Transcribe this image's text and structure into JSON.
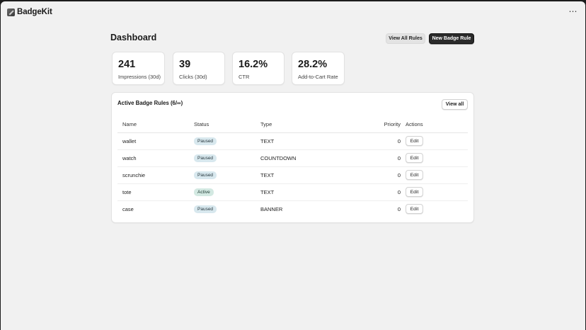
{
  "app": {
    "name": "BadgeKit",
    "more_label": "⋯"
  },
  "header": {
    "title": "Dashboard",
    "view_all_rules_label": "View All Rules",
    "new_badge_rule_label": "New Badge Rule"
  },
  "stats": [
    {
      "value": "241",
      "label": "Impressions (30d)"
    },
    {
      "value": "39",
      "label": "Clicks (30d)"
    },
    {
      "value": "16.2%",
      "label": "CTR"
    },
    {
      "value": "28.2%",
      "label": "Add-to-Cart Rate"
    }
  ],
  "rules": {
    "title": "Active Badge Rules (6/∞)",
    "view_all_label": "View all",
    "columns": {
      "name": "Name",
      "status": "Status",
      "type": "Type",
      "priority": "Priority",
      "actions": "Actions"
    },
    "rows": [
      {
        "name": "wallet",
        "status": "Paused",
        "type": "TEXT",
        "priority": "0",
        "action": "Edit"
      },
      {
        "name": "watch",
        "status": "Paused",
        "type": "COUNTDOWN",
        "priority": "0",
        "action": "Edit"
      },
      {
        "name": "scrunchie",
        "status": "Paused",
        "type": "TEXT",
        "priority": "0",
        "action": "Edit"
      },
      {
        "name": "tote",
        "status": "Active",
        "type": "TEXT",
        "priority": "0",
        "action": "Edit"
      },
      {
        "name": "case",
        "status": "Paused",
        "type": "BANNER",
        "priority": "0",
        "action": "Edit"
      }
    ]
  },
  "colors": {
    "badge_paused": "#d8e8ee",
    "badge_active": "#d3e9e2",
    "primary_button": "#2b2b2b"
  }
}
